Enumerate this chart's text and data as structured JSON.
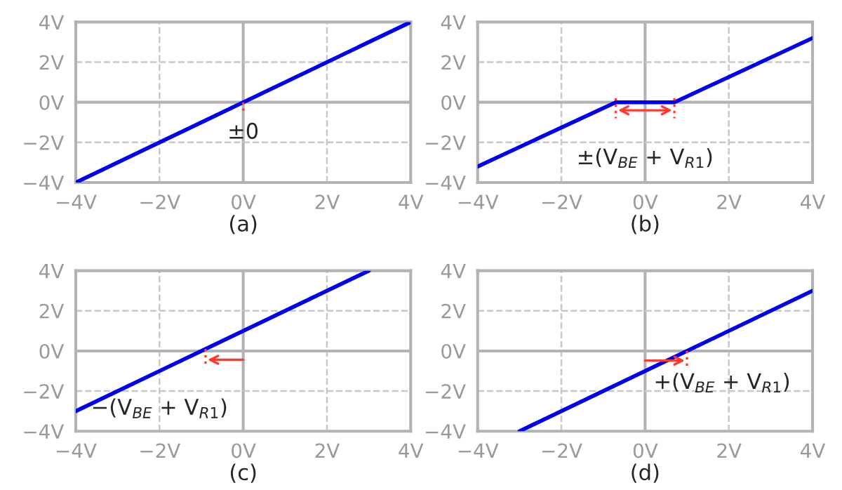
{
  "chart_data": [
    {
      "type": "line",
      "xlabel": "(a)",
      "xlim": [
        -4,
        4
      ],
      "ylim": [
        -4,
        4
      ],
      "xticks": [
        {
          "value": -4,
          "label": "−4V"
        },
        {
          "value": -2,
          "label": "−2V"
        },
        {
          "value": 0,
          "label": "0V"
        },
        {
          "value": 2,
          "label": "2V"
        },
        {
          "value": 4,
          "label": "4V"
        }
      ],
      "yticks": [
        {
          "value": -4,
          "label": "−4V"
        },
        {
          "value": -2,
          "label": "−2V"
        },
        {
          "value": 0,
          "label": "0V"
        },
        {
          "value": 2,
          "label": "2V"
        },
        {
          "value": 4,
          "label": "4V"
        }
      ],
      "grid": true,
      "line_style": "solid",
      "series": [
        {
          "color": "#0000ee",
          "x": [
            -4,
            4
          ],
          "values": [
            -4,
            4
          ]
        },
        {
          "color": "#ff3b30",
          "line_style": "dotted",
          "x": [
            0,
            0
          ],
          "values": [
            0,
            -0.6
          ]
        }
      ],
      "annotations": [
        "±0"
      ]
    },
    {
      "type": "line",
      "xlabel": "(b)",
      "xlim": [
        -4,
        4
      ],
      "ylim": [
        -4,
        4
      ],
      "xticks": [
        {
          "value": -4,
          "label": "−4V"
        },
        {
          "value": -2,
          "label": "−2V"
        },
        {
          "value": 0,
          "label": "0V"
        },
        {
          "value": 2,
          "label": "2V"
        },
        {
          "value": 4,
          "label": "4V"
        }
      ],
      "yticks": [
        {
          "value": -4,
          "label": "−4V"
        },
        {
          "value": -2,
          "label": "−2V"
        },
        {
          "value": 0,
          "label": "0V"
        },
        {
          "value": 2,
          "label": "2V"
        },
        {
          "value": 4,
          "label": "4V"
        }
      ],
      "grid": true,
      "line_style": "solid",
      "series": [
        {
          "color": "#0000ee",
          "x": [
            -4,
            -0.7,
            0.7,
            4
          ],
          "values": [
            -3.2,
            0,
            0,
            3.2
          ]
        },
        {
          "color": "#ff3b30",
          "line_style": "dotted",
          "x": [
            -0.7,
            -0.7
          ],
          "values": [
            0.2,
            -0.8
          ]
        },
        {
          "color": "#ff3b30",
          "line_style": "dotted",
          "x": [
            0.7,
            0.7
          ],
          "values": [
            0.2,
            -0.8
          ]
        }
      ],
      "annotations": [
        "±(V$_{BE}$ + V$_{R1}$)"
      ]
    },
    {
      "type": "line",
      "xlabel": "(c)",
      "xlim": [
        -4,
        4
      ],
      "ylim": [
        -4,
        4
      ],
      "xticks": [
        {
          "value": -4,
          "label": "−4V"
        },
        {
          "value": -2,
          "label": "−2V"
        },
        {
          "value": 0,
          "label": "0V"
        },
        {
          "value": 2,
          "label": "2V"
        },
        {
          "value": 4,
          "label": "4V"
        }
      ],
      "yticks": [
        {
          "value": -4,
          "label": "−4V"
        },
        {
          "value": -2,
          "label": "−2V"
        },
        {
          "value": 0,
          "label": "0V"
        },
        {
          "value": 2,
          "label": "2V"
        },
        {
          "value": 4,
          "label": "4V"
        }
      ],
      "grid": true,
      "line_style": "solid",
      "series": [
        {
          "color": "#0000ee",
          "x": [
            -4,
            3
          ],
          "values": [
            -3,
            4
          ]
        },
        {
          "color": "#ff3b30",
          "line_style": "dotted",
          "x": [
            -0.9,
            -0.9
          ],
          "values": [
            0.1,
            -0.8
          ]
        }
      ],
      "annotations": [
        "−(V$_{BE}$ + V$_{R1}$)"
      ]
    },
    {
      "type": "line",
      "xlabel": "(d)",
      "xlim": [
        -4,
        4
      ],
      "ylim": [
        -4,
        4
      ],
      "xticks": [
        {
          "value": -4,
          "label": "−4V"
        },
        {
          "value": -2,
          "label": "−2V"
        },
        {
          "value": 0,
          "label": "0V"
        },
        {
          "value": 2,
          "label": "2V"
        },
        {
          "value": 4,
          "label": "4V"
        }
      ],
      "yticks": [
        {
          "value": -4,
          "label": "−4V"
        },
        {
          "value": -2,
          "label": "−2V"
        },
        {
          "value": 0,
          "label": "0V"
        },
        {
          "value": 2,
          "label": "2V"
        },
        {
          "value": 4,
          "label": "4V"
        }
      ],
      "grid": true,
      "line_style": "solid",
      "series": [
        {
          "color": "#0000ee",
          "x": [
            -3,
            4
          ],
          "values": [
            -4,
            3
          ]
        },
        {
          "color": "#ff3b30",
          "line_style": "dotted",
          "x": [
            1,
            1
          ],
          "values": [
            0,
            -0.8
          ]
        }
      ],
      "annotations": [
        "+(V$_{BE}$ + V$_{R1}$)"
      ]
    }
  ]
}
